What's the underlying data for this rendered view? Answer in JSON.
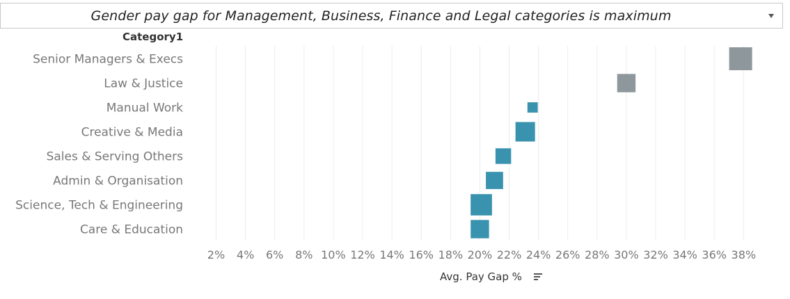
{
  "header": {
    "title": "Gender pay gap for Management, Business, Finance and Legal categories is maximum"
  },
  "icons": {
    "dropdown": "dropdown-arrow-icon",
    "sort": "sort-descending-icon"
  },
  "colors": {
    "teal": "#3a93ae",
    "gray": "#8e989c",
    "grid": "#ececec",
    "label": "#777777"
  },
  "chart_data": {
    "type": "scatter",
    "title": "Gender pay gap for Management, Business, Finance and Legal categories is maximum",
    "ylabel": "Category1",
    "xlabel": "Avg. Pay Gap %",
    "xlim": [
      1,
      40
    ],
    "x_ticks": [
      2,
      4,
      6,
      8,
      10,
      12,
      14,
      16,
      18,
      20,
      22,
      24,
      26,
      28,
      30,
      32,
      34,
      36,
      38
    ],
    "x_tick_labels": [
      "2%",
      "4%",
      "6%",
      "8%",
      "10%",
      "12%",
      "14%",
      "16%",
      "18%",
      "20%",
      "22%",
      "24%",
      "26%",
      "28%",
      "30%",
      "32%",
      "34%",
      "36%",
      "38%"
    ],
    "grid": true,
    "marker": "square",
    "categories": [
      "Senior Managers & Execs",
      "Law & Justice",
      "Manual Work",
      "Creative & Media",
      "Sales & Serving Others",
      "Admin & Organisation",
      "Science, Tech & Engineering",
      "Care & Education"
    ],
    "values": [
      37.8,
      30.0,
      23.6,
      23.1,
      21.6,
      21.0,
      20.1,
      20.0
    ],
    "size_relative": [
      1.0,
      0.8,
      0.45,
      0.85,
      0.68,
      0.75,
      0.93,
      0.8
    ],
    "colors": [
      "#8e989c",
      "#8e989c",
      "#3a93ae",
      "#3a93ae",
      "#3a93ae",
      "#3a93ae",
      "#3a93ae",
      "#3a93ae"
    ]
  }
}
